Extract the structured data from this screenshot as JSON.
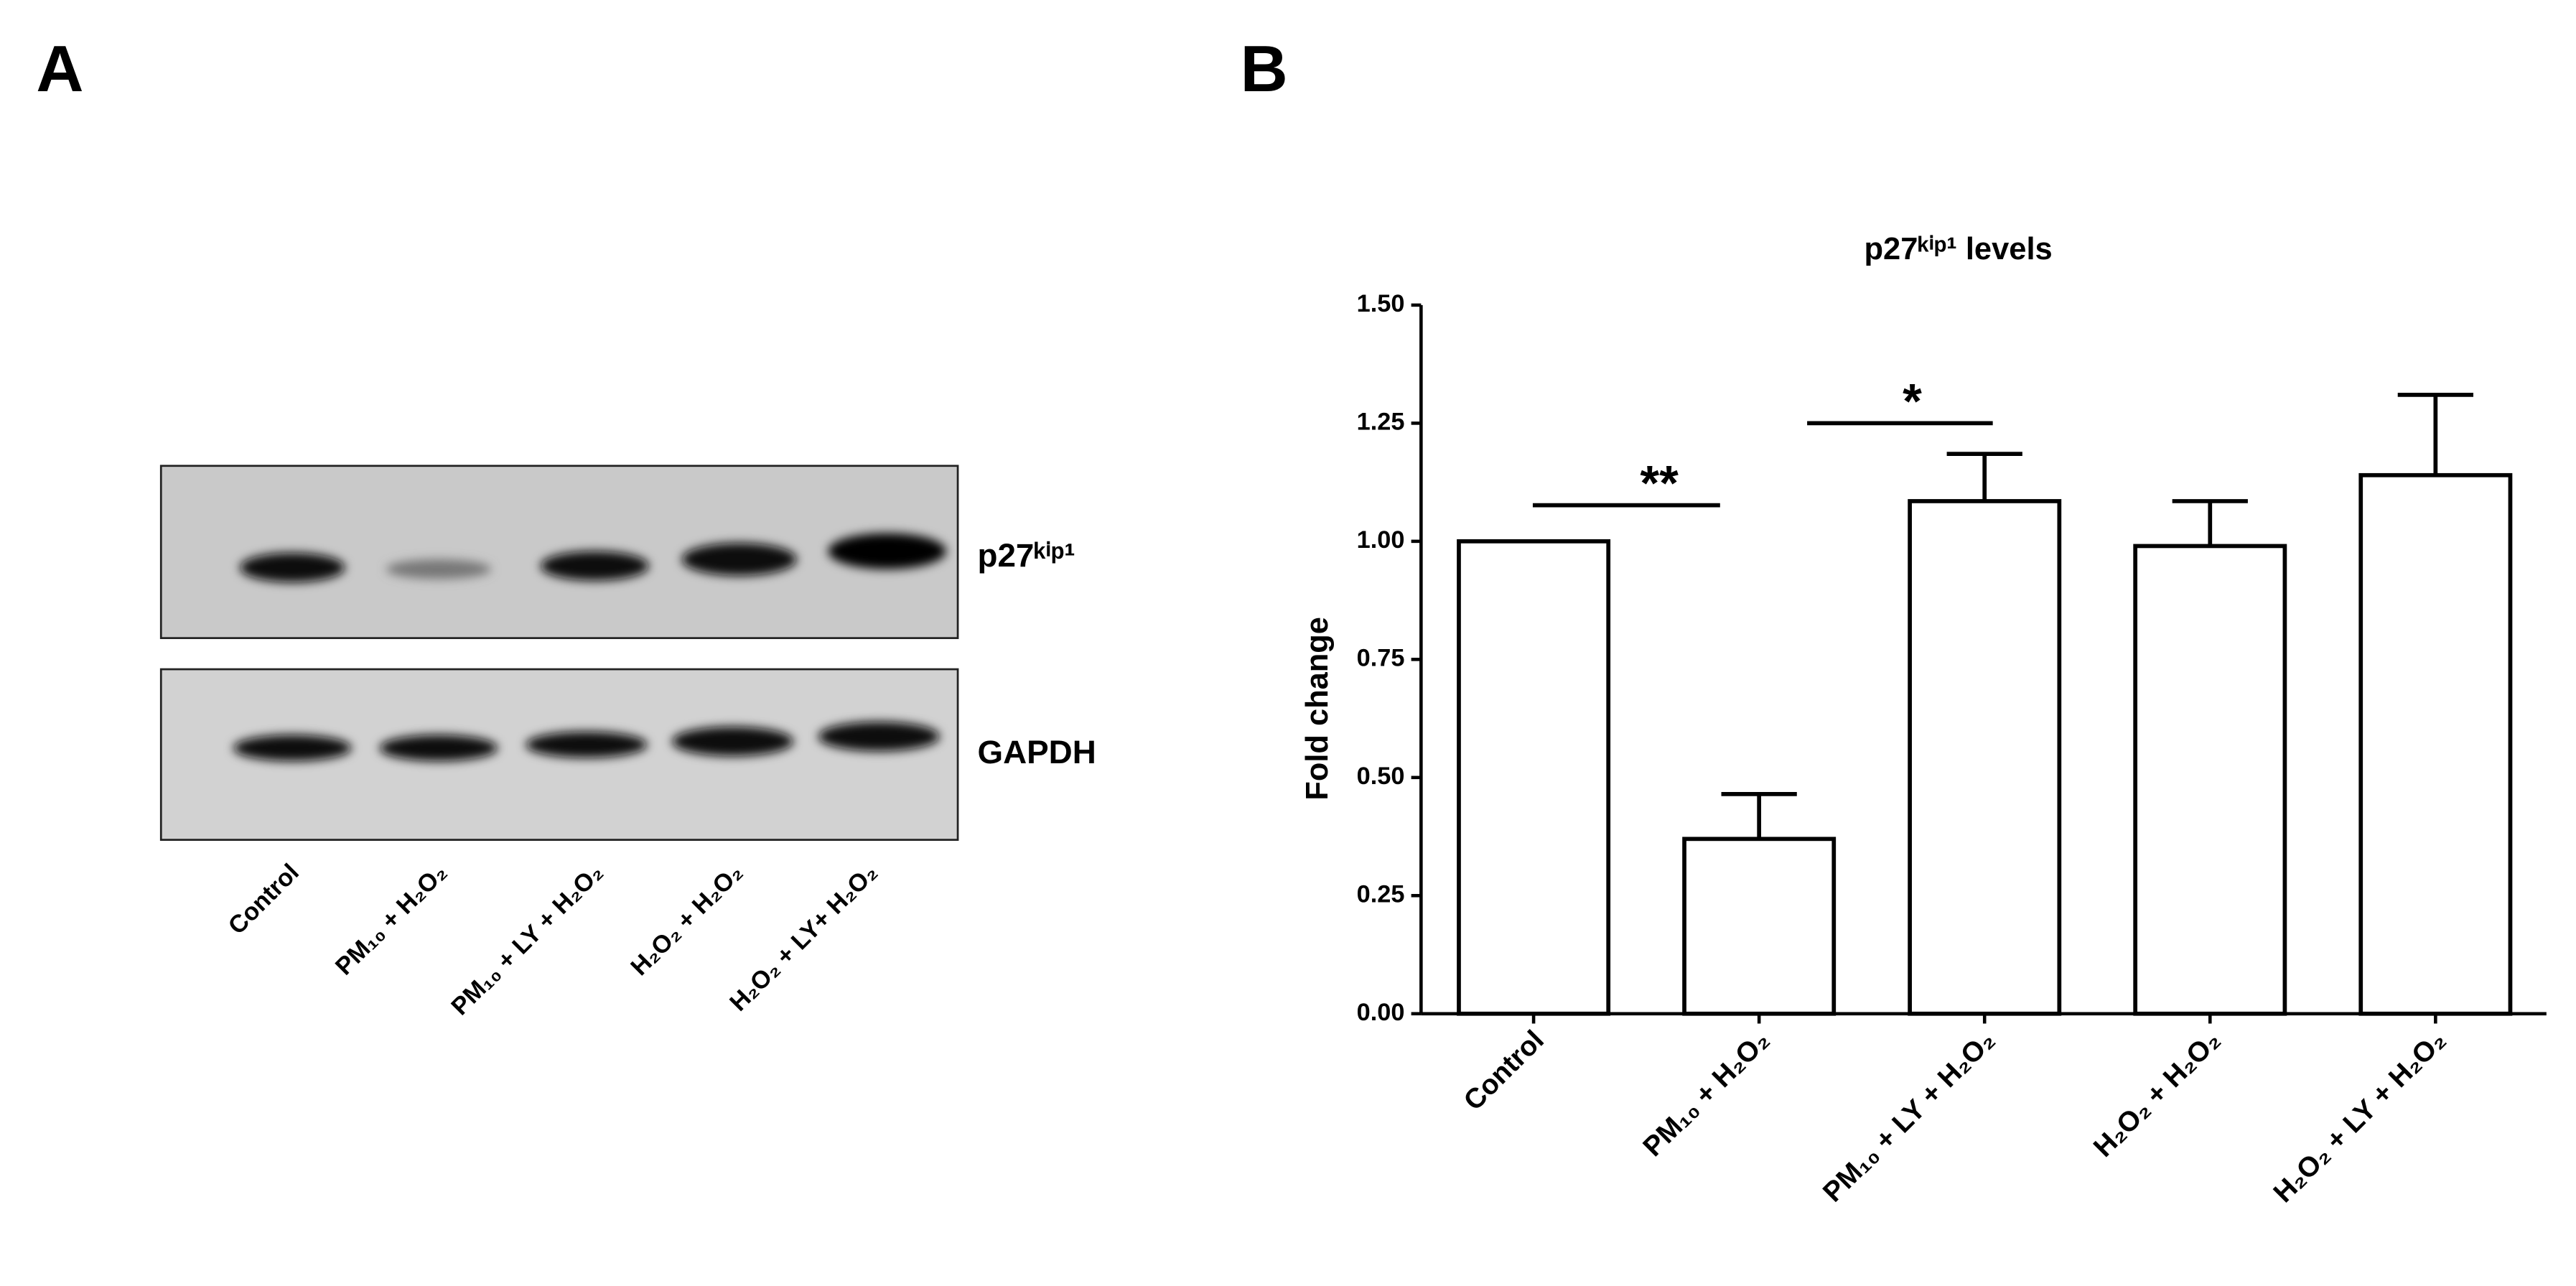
{
  "panels": {
    "a": "A",
    "b": "B"
  },
  "blot": {
    "bands": [
      "p27ᵏⁱᵖ¹",
      "GAPDH"
    ],
    "lanes": [
      "Control",
      "PM₁₀ + H₂O₂",
      "PM₁₀ + LY + H₂O₂",
      "H₂O₂ + H₂O₂",
      "H₂O₂ + LY+ H₂O₂"
    ]
  },
  "chart_data": {
    "type": "bar",
    "title": "p27ᵏⁱᵖ¹ levels",
    "y_label": "Fold change",
    "categories": [
      "Control",
      "PM₁₀ + H₂O₂",
      "PM₁₀ +  LY + H₂O₂",
      "H₂O₂ +  H₂O₂",
      "H₂O₂ + LY + H₂O₂"
    ],
    "values": [
      1.0,
      0.37,
      1.085,
      0.99,
      1.14
    ],
    "errors": [
      0,
      0.095,
      0.1,
      0.095,
      0.17
    ],
    "color": "#ffffff",
    "ylim": [
      0,
      1.5
    ],
    "yticks": [
      {
        "value": 0,
        "label": "0.00"
      },
      {
        "value": 0.25,
        "label": "0.25"
      },
      {
        "value": 0.5,
        "label": "0.50"
      },
      {
        "value": 0.75,
        "label": "0.75"
      },
      {
        "value": 1.0,
        "label": "1.00"
      },
      {
        "value": 1.25,
        "label": "1.25"
      },
      {
        "value": 1.5,
        "label": "1.50"
      }
    ],
    "annotations": [
      "**",
      "*"
    ]
  }
}
